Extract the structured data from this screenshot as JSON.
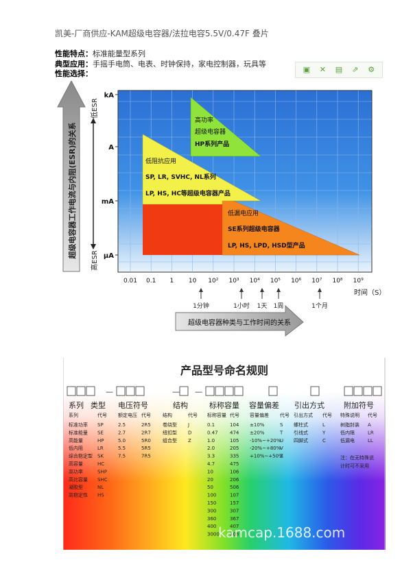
{
  "title": "凯美-厂商供应-KAM超级电容器/法拉电容5.5V/0.47F 叠片",
  "info": {
    "feature_label": "性能特点：",
    "feature_value": "标准能量型系列",
    "app_label": "典型应用：",
    "app_value": "手摇手电筒、电表、时钟保持，家电控制器，玩具等",
    "select_label": "性能选择："
  },
  "toolbar": [
    "fullscreen-icon",
    "expand-icon",
    "save-icon",
    "share-icon",
    "settings-icon"
  ],
  "chart_data": {
    "type": "area",
    "ylabel_vertical": "超级电容器工作电流与内阻(ESR)的关系",
    "esr_low": "低ESR",
    "esr_high": "高ESR",
    "y_ticks": [
      "kA",
      "A",
      "mA",
      "μA"
    ],
    "x_ticks": [
      "0.01",
      "0.1",
      "1",
      "10",
      "10²",
      "10³",
      "10⁴",
      "10⁵",
      "10⁶",
      "10⁷",
      "10⁸",
      "10⁹"
    ],
    "xlabel": "时间（S）",
    "time_marks": [
      "1分钟",
      "1小时",
      "1天",
      "1周",
      "1个月"
    ],
    "arrow_label": "超级电容器种类与工作时间的关系",
    "regions": [
      {
        "name": "高功率",
        "lines": [
          "高功率",
          "超级电容器",
          "HP系列产品"
        ],
        "color": "#8fe33a"
      },
      {
        "name": "低阻抗应用",
        "lines": [
          "低阻抗应用",
          "SP, LR, SVHC, NL系列",
          "LP, HS, HC等超级电容器产品"
        ],
        "color": "#f3f04a"
      },
      {
        "name": "低漏电应用",
        "lines": [
          "低漏电应用",
          "SE系列超级电容器",
          "LP, HS, LPD, HSD型产品"
        ],
        "color": "#f5861e"
      },
      {
        "name": "red",
        "color": "#ef3a12"
      }
    ]
  },
  "naming": {
    "title": "产品型号命名规则",
    "groups": [
      "系列",
      "类型",
      "电压符号",
      "结构",
      "标称容量",
      "容量偏差",
      "引出方式",
      "附加符号"
    ],
    "series": {
      "head": [
        "系列",
        "代号"
      ],
      "rows": [
        [
          "标准功率",
          "SP"
        ],
        [
          "标准能量",
          "SE"
        ],
        [
          "高能量",
          "HP"
        ],
        [
          "低内阻",
          "LR"
        ],
        [
          "综合稳定型",
          "SK"
        ],
        [
          "高容量",
          "HC"
        ],
        [
          "高功率",
          "SHP"
        ],
        [
          "高比容量",
          "SHC"
        ],
        [
          "凝胶型",
          "NL"
        ],
        [
          "高稳定性",
          "HS"
        ]
      ]
    },
    "voltage": {
      "head": [
        "额定电压",
        "代号"
      ],
      "rows": [
        [
          "2.5",
          "2R5"
        ],
        [
          "2.7",
          "2R7"
        ],
        [
          "5.0",
          "5R0"
        ],
        [
          "5.5",
          "5R5"
        ],
        [
          "7.5",
          "7R5"
        ]
      ]
    },
    "structure": {
      "head": [
        "结构",
        "代号"
      ],
      "rows": [
        [
          "卷绕型",
          "J"
        ],
        [
          "纽扣型",
          "D"
        ],
        [
          "组合型",
          "Z"
        ]
      ]
    },
    "capacity": {
      "head": [
        "标称容量",
        "代号"
      ],
      "rows": [
        [
          "0.1",
          "104"
        ],
        [
          "0.47",
          "474"
        ],
        [
          "1.0",
          "105"
        ],
        [
          "2.0",
          "205"
        ],
        [
          "3.3",
          "335"
        ],
        [
          "4.7",
          "475"
        ],
        [
          "10",
          "106"
        ],
        [
          "20",
          "206"
        ],
        [
          "50",
          "506"
        ],
        [
          "100",
          "107"
        ],
        [
          "150",
          "157"
        ],
        [
          "300",
          "307"
        ],
        [
          "360",
          "367"
        ],
        [
          "400",
          "407"
        ],
        [
          "3000",
          "308"
        ]
      ]
    },
    "tolerance": {
      "head": [
        "容量偏差",
        "代号"
      ],
      "rows": [
        [
          "±10%",
          "S"
        ],
        [
          "±20%",
          "T"
        ],
        [
          "-10%~+20%",
          "U"
        ],
        [
          "-20%~+80%",
          "V"
        ],
        [
          "+10%~+50%",
          "Z"
        ]
      ]
    },
    "lead": {
      "head": [
        "引出方式",
        "代号"
      ],
      "rows": [
        [
          "螺柱式",
          "L"
        ],
        [
          "引线式",
          "Y"
        ],
        [
          "四脚式",
          "C"
        ]
      ]
    },
    "extra": {
      "head": [
        "特殊说明",
        "代号"
      ],
      "rows": [
        [
          "树脂封装",
          "A"
        ],
        [
          "低内阻",
          "LR"
        ],
        [
          "低漏电",
          "LL"
        ]
      ],
      "note1": "注：在无特殊说",
      "note2": "计时可不采用"
    },
    "watermark": "kamcap.1688.com"
  }
}
